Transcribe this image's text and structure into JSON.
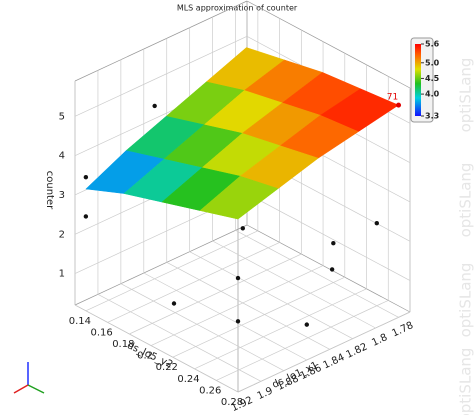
{
  "chart_data": {
    "type": "surface3d",
    "title": "MLS approximation of counter",
    "x_label": "ds_lo5_y2",
    "y_label": "ds_lo1_x1",
    "z_label": "counter",
    "xlim": [
      0.13,
      0.28
    ],
    "xticks": [
      0.14,
      0.16,
      0.18,
      0.2,
      0.22,
      0.24,
      0.26,
      0.28
    ],
    "ylim": [
      1.77,
      1.92
    ],
    "yticks": [
      1.78,
      1.8,
      1.82,
      1.84,
      1.86,
      1.88,
      1.9,
      1.92
    ],
    "zlim": [
      0.2,
      5.9
    ],
    "zticks": [
      1,
      2,
      3,
      4,
      5
    ],
    "surface": {
      "x": [
        0.14,
        0.175,
        0.21,
        0.245,
        0.28
      ],
      "y": [
        1.78,
        1.815,
        1.85,
        1.885,
        1.92
      ],
      "z": [
        [
          5.0,
          4.6,
          4.2,
          3.8,
          3.3
        ],
        [
          5.2,
          4.9,
          4.5,
          4.1,
          3.7
        ],
        [
          5.4,
          5.1,
          4.8,
          4.4,
          4.0
        ],
        [
          5.5,
          5.3,
          5.0,
          4.7,
          4.3
        ],
        [
          5.6,
          5.4,
          5.2,
          4.9,
          4.6
        ]
      ]
    },
    "points": {
      "x": [
        0.14,
        0.14,
        0.14,
        0.14,
        0.14,
        0.2,
        0.2,
        0.28,
        0.28,
        0.28,
        0.24,
        0.26,
        0.18,
        0.22
      ],
      "y": [
        1.92,
        1.92,
        1.86,
        1.84,
        1.8,
        1.9,
        1.84,
        1.92,
        1.92,
        1.86,
        1.8,
        1.78,
        1.82,
        1.78
      ],
      "z": [
        3.6,
        2.6,
        4.6,
        2.0,
        1.3,
        1.0,
        2.1,
        3.1,
        2.0,
        1.1,
        1.1,
        2.3,
        5.6,
        1.2
      ]
    },
    "colorbar": {
      "lim": [
        3.3,
        5.6
      ],
      "ticks": [
        {
          "value": 5.6,
          "label": "5.6"
        },
        {
          "value": 5,
          "label": "5.0"
        },
        4.5,
        {
          "value": 4,
          "label": "4.0"
        },
        3.3
      ]
    },
    "annotation": "71",
    "watermark": "optiSLang"
  }
}
